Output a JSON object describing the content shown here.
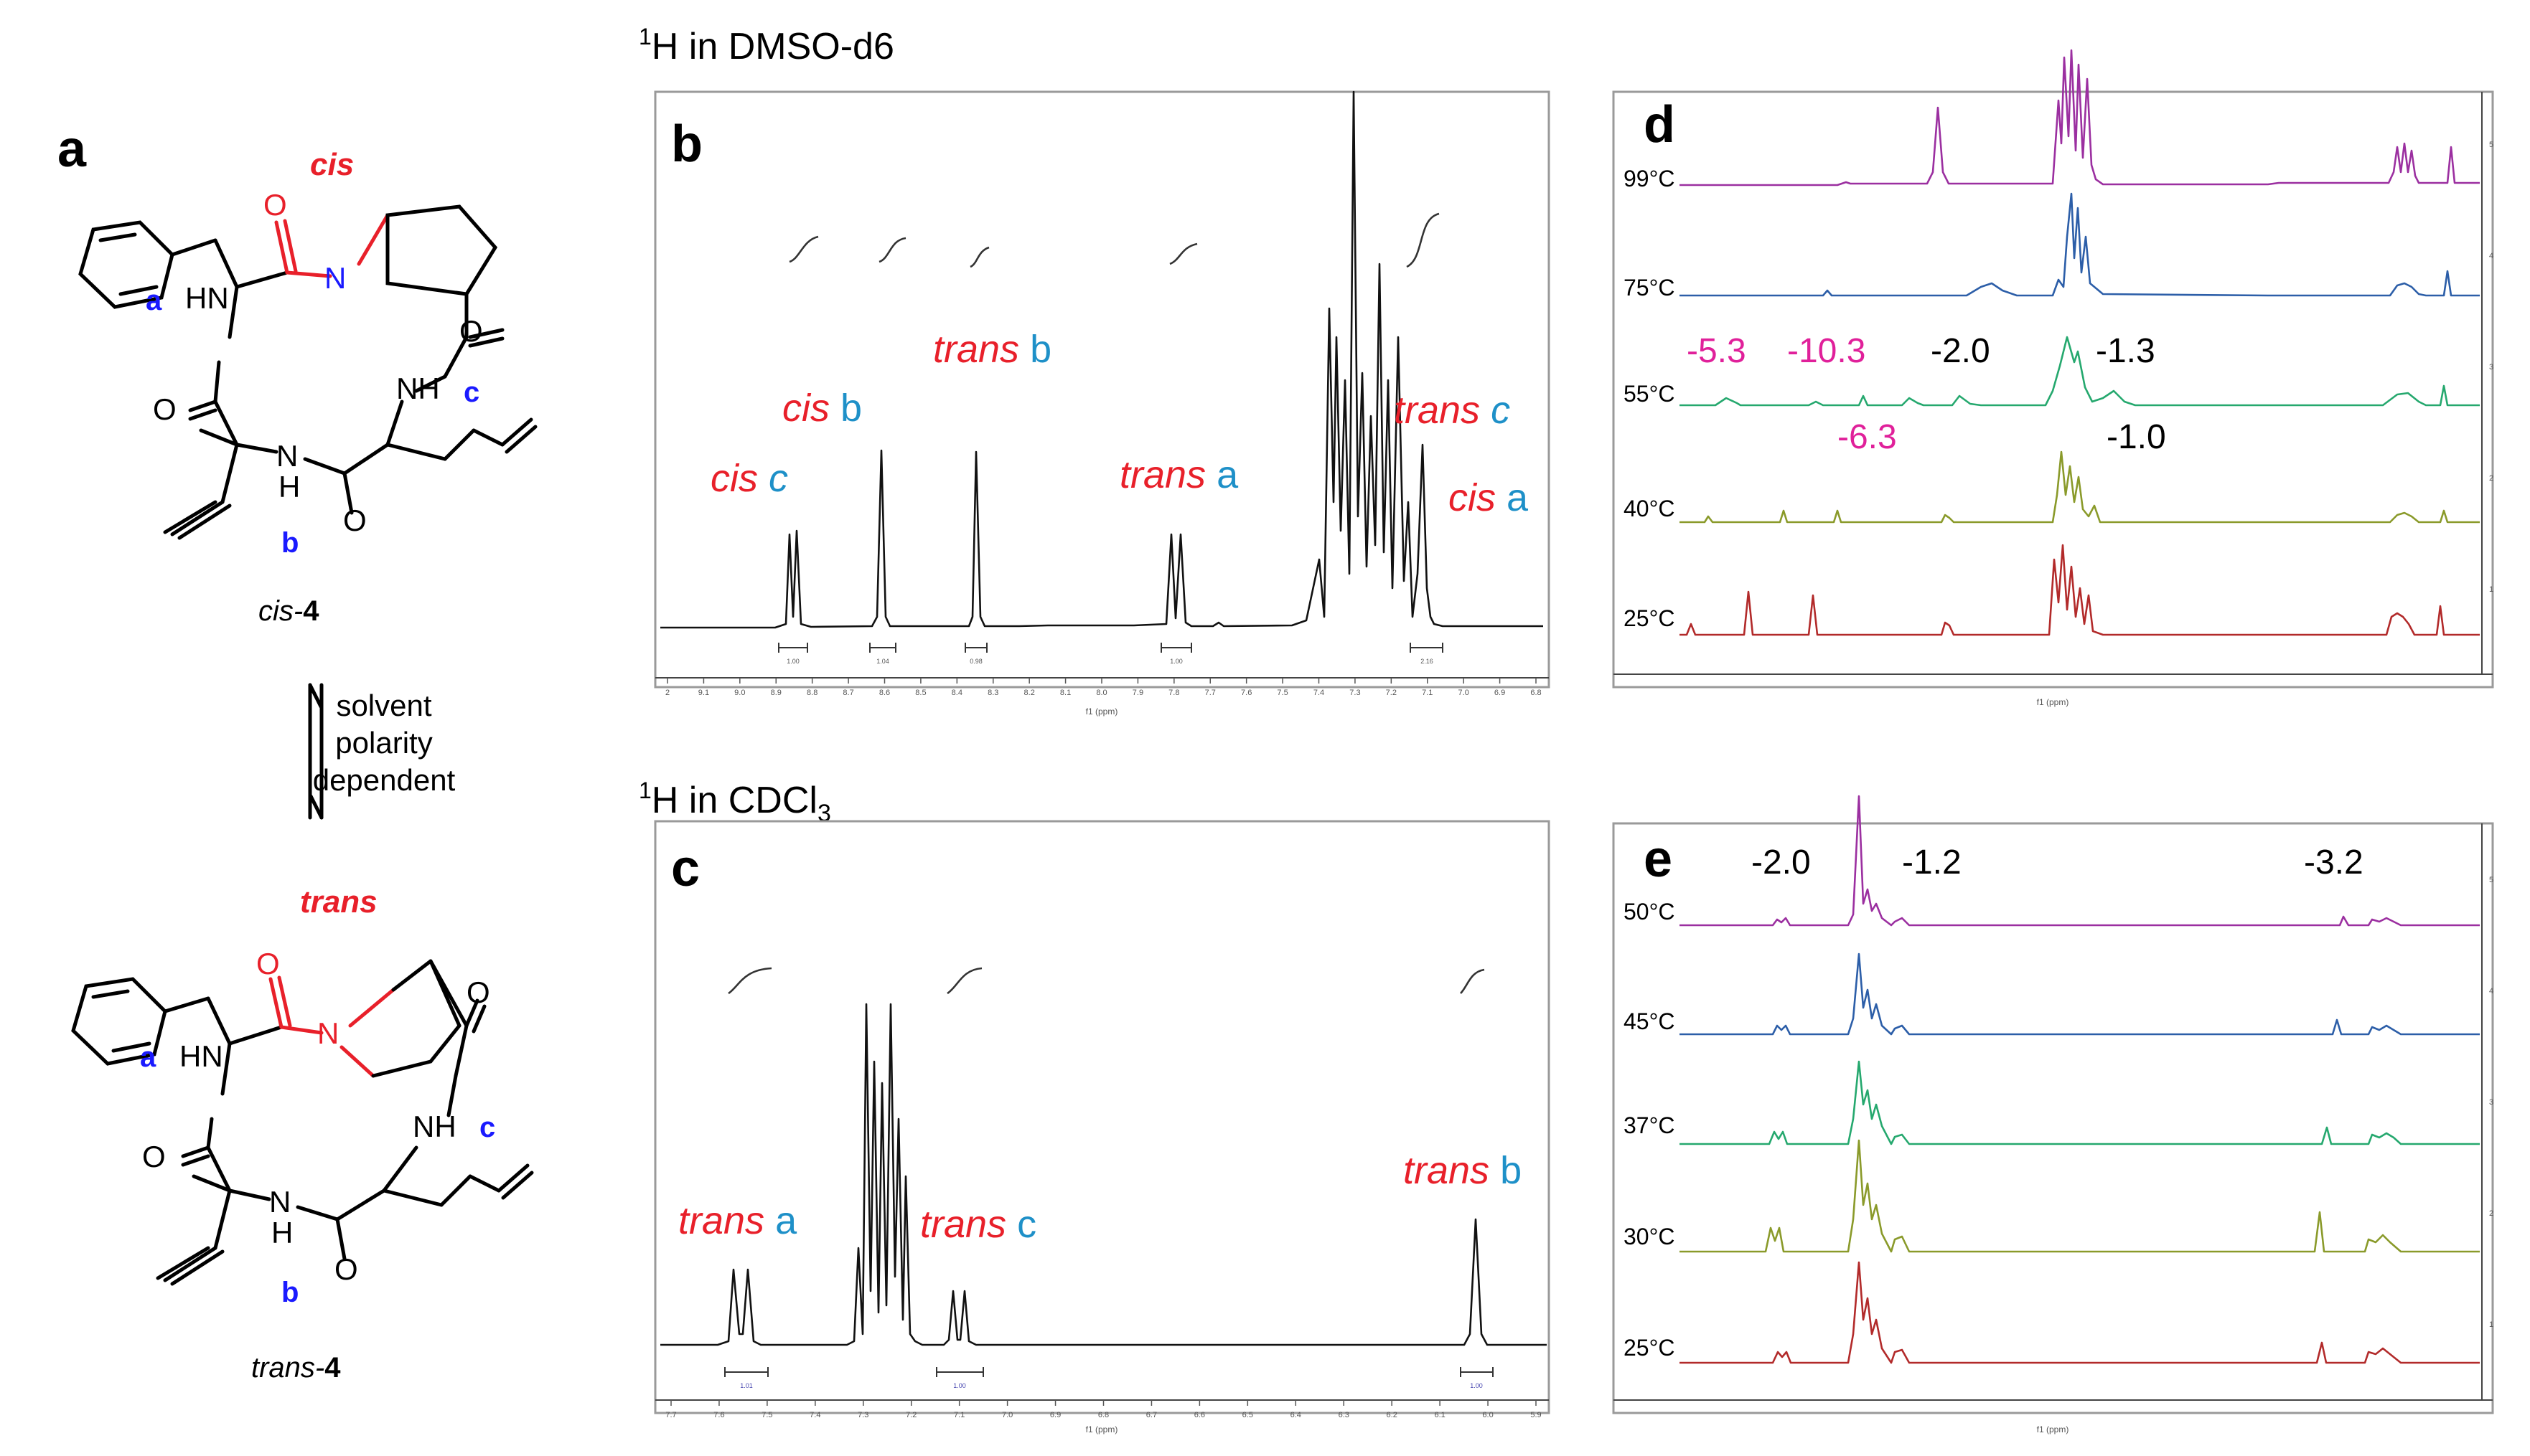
{
  "panel_a": {
    "letter": "a",
    "cis_label": "cis",
    "trans_label": "trans",
    "compound_cis": {
      "prefix": "cis-",
      "number": "4"
    },
    "compound_trans": {
      "prefix": "trans-",
      "number": "4"
    },
    "equilibrium_text": [
      "solvent",
      "polarity",
      "dependent"
    ],
    "atoms": {
      "hn": "HN",
      "nh": "NH",
      "n": "N",
      "h": "H",
      "o": "O"
    },
    "proton_labels": {
      "a": "a",
      "b": "b",
      "c": "c"
    }
  },
  "panel_b": {
    "heading_sup": "1",
    "heading_rest": "H in DMSO-d6",
    "letter": "b",
    "labels": [
      {
        "stereo": "cis",
        "proton": "c"
      },
      {
        "stereo": "cis",
        "proton": "b"
      },
      {
        "stereo": "trans",
        "proton": "b"
      },
      {
        "stereo": "trans",
        "proton": "a"
      },
      {
        "stereo": "trans",
        "proton": "c"
      },
      {
        "stereo": "cis",
        "proton": "a"
      }
    ],
    "axis_ticks": [
      "2",
      "9.1",
      "9.0",
      "8.9",
      "8.8",
      "8.7",
      "8.6",
      "8.5",
      "8.4",
      "8.3",
      "8.2",
      "8.1",
      "8.0",
      "7.9",
      "7.8",
      "7.7",
      "7.6",
      "7.5",
      "7.4",
      "7.3",
      "7.2",
      "7.1",
      "7.0",
      "6.9",
      "6.8"
    ],
    "axis_label": "f1 (ppm)",
    "integrals": [
      "1.00",
      "1.04",
      "0.98",
      "1.00",
      "2.16"
    ]
  },
  "panel_c": {
    "heading_sup": "1",
    "heading_main": "H in CDCl",
    "heading_sub": "3",
    "letter": "c",
    "labels": [
      {
        "stereo": "trans",
        "proton": "a"
      },
      {
        "stereo": "trans",
        "proton": "c"
      },
      {
        "stereo": "trans",
        "proton": "b"
      }
    ],
    "axis_ticks": [
      "7.7",
      "7.6",
      "7.5",
      "7.4",
      "7.3",
      "7.2",
      "7.1",
      "7.0",
      "6.9",
      "6.8",
      "6.7",
      "6.6",
      "6.5",
      "6.4",
      "6.3",
      "6.2",
      "6.1",
      "6.0",
      "5.9"
    ],
    "axis_label": "f1 (ppm)",
    "integrals": [
      "1.01",
      "1.00",
      "1.00"
    ]
  },
  "panel_d": {
    "letter": "d",
    "temperatures": [
      "99°C",
      "75°C",
      "55°C",
      "40°C",
      "25°C"
    ],
    "trace_colors": [
      "#9b2fa0",
      "#2c5ea8",
      "#25a86e",
      "#8a9a2a",
      "#b22a2a"
    ],
    "shift_annotations": [
      {
        "text": "-5.3",
        "color": "#e0209a"
      },
      {
        "text": "-10.3",
        "color": "#e0209a"
      },
      {
        "text": "-2.0",
        "color": "#000000"
      },
      {
        "text": "-1.3",
        "color": "#000000"
      },
      {
        "text": "-6.3",
        "color": "#e0209a"
      },
      {
        "text": "-1.0",
        "color": "#000000"
      }
    ],
    "axis_label": "f1 (ppm)",
    "right_axis": [
      "5",
      "4",
      "3",
      "2",
      "1"
    ]
  },
  "panel_e": {
    "letter": "e",
    "temperatures": [
      "50°C",
      "45°C",
      "37°C",
      "30°C",
      "25°C"
    ],
    "trace_colors": [
      "#9b2fa0",
      "#2c5ea8",
      "#25a86e",
      "#8a9a2a",
      "#b22a2a"
    ],
    "shift_annotations": [
      "-2.0",
      "-1.2",
      "-3.2"
    ],
    "axis_label": "f1 (ppm)",
    "right_axis": [
      "5",
      "4",
      "3",
      "2",
      "1"
    ]
  }
}
